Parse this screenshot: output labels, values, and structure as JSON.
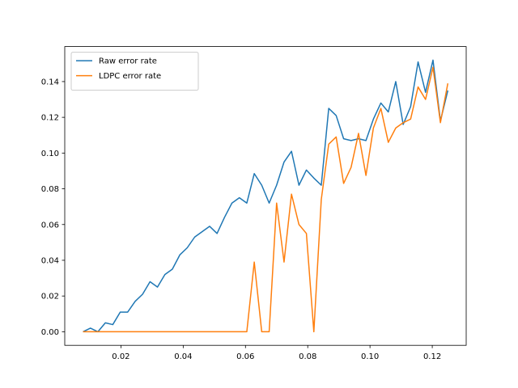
{
  "chart_data": {
    "type": "line",
    "x": [
      0.00781,
      0.0102,
      0.0126,
      0.01499,
      0.01738,
      0.01977,
      0.02216,
      0.02456,
      0.02695,
      0.02934,
      0.03173,
      0.03412,
      0.03651,
      0.03891,
      0.0413,
      0.04369,
      0.04608,
      0.04847,
      0.05087,
      0.05326,
      0.05565,
      0.05804,
      0.06043,
      0.06282,
      0.06522,
      0.06761,
      0.07,
      0.07239,
      0.07478,
      0.07718,
      0.07957,
      0.08196,
      0.08435,
      0.08674,
      0.08913,
      0.09153,
      0.09392,
      0.09631,
      0.0987,
      0.10109,
      0.10349,
      0.10588,
      0.10827,
      0.11066,
      0.11305,
      0.11544,
      0.11784,
      0.12023,
      0.12262,
      0.125
    ],
    "series": [
      {
        "name": "Raw error rate",
        "color": "#1f77b4",
        "values": [
          0,
          0.002,
          0,
          0.005,
          0.004,
          0.011,
          0.011,
          0.017,
          0.021,
          0.028,
          0.025,
          0.032,
          0.035,
          0.043,
          0.047,
          0.053,
          0.056,
          0.059,
          0.055,
          0.064,
          0.072,
          0.075,
          0.072,
          0.0885,
          0.082,
          0.072,
          0.082,
          0.095,
          0.101,
          0.082,
          0.0905,
          0.086,
          0.082,
          0.125,
          0.121,
          0.108,
          0.107,
          0.108,
          0.107,
          0.119,
          0.128,
          0.123,
          0.14,
          0.116,
          0.126,
          0.151,
          0.134,
          0.152,
          0.118,
          0.135
        ]
      },
      {
        "name": "LDPC error rate",
        "color": "#ff7f0e",
        "values": [
          0,
          0,
          0,
          0,
          0,
          0,
          0,
          0,
          0,
          0,
          0,
          0,
          0,
          0,
          0,
          0,
          0,
          0,
          0,
          0,
          0,
          0,
          0,
          0.039,
          0,
          0,
          0.072,
          0.039,
          0.077,
          0.06,
          0.055,
          0,
          0.074,
          0.105,
          0.109,
          0.083,
          0.092,
          0.111,
          0.0875,
          0.114,
          0.125,
          0.106,
          0.114,
          0.117,
          0.119,
          0.137,
          0.13,
          0.148,
          0.117,
          0.139
        ]
      }
    ],
    "xlim": [
      0.00195,
      0.1309
    ],
    "ylim": [
      -0.0076,
      0.1596
    ],
    "xticks": [
      {
        "value": 0.02,
        "label": "0.02"
      },
      {
        "value": 0.04,
        "label": "0.04"
      },
      {
        "value": 0.06,
        "label": "0.06"
      },
      {
        "value": 0.08,
        "label": "0.08"
      },
      {
        "value": 0.1,
        "label": "0.10"
      },
      {
        "value": 0.12,
        "label": "0.12"
      }
    ],
    "yticks": [
      {
        "value": 0,
        "label": "0.00"
      },
      {
        "value": 0.02,
        "label": "0.02"
      },
      {
        "value": 0.04,
        "label": "0.04"
      },
      {
        "value": 0.06,
        "label": "0.06"
      },
      {
        "value": 0.08,
        "label": "0.08"
      },
      {
        "value": 0.1,
        "label": "0.10"
      },
      {
        "value": 0.12,
        "label": "0.12"
      },
      {
        "value": 0.14,
        "label": "0.14"
      }
    ],
    "legend": "upper left",
    "grid": false
  }
}
